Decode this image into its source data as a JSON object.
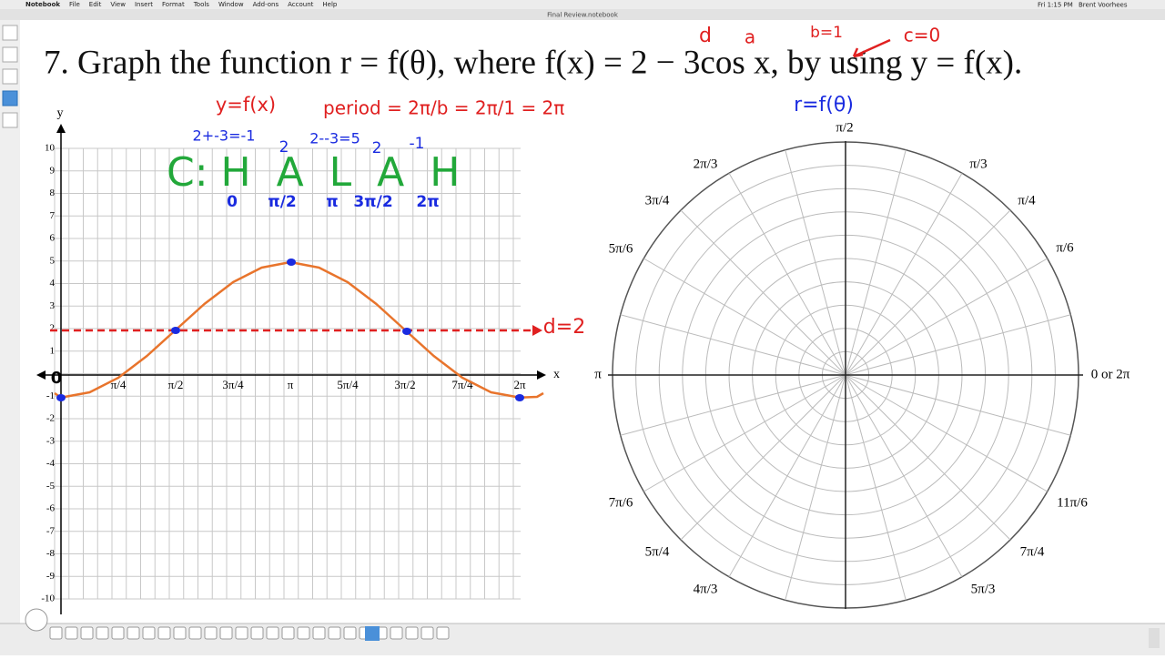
{
  "menubar": {
    "items": [
      "Notebook",
      "File",
      "Edit",
      "View",
      "Insert",
      "Format",
      "Tools",
      "Window",
      "Add-ons",
      "Account",
      "Help"
    ],
    "clock": "Fri 1:15 PM",
    "user": "Brent Voorhees"
  },
  "window": {
    "title": "Final Review.notebook"
  },
  "problem": {
    "text": "7. Graph the function r = f(θ), where f(x) = 2 − 3cos x, by using y = f(x)."
  },
  "left_graph": {
    "x_axis_label": "x",
    "y_axis_label": "y",
    "x_ticks": [
      "π/4",
      "π/2",
      "3π/4",
      "π",
      "5π/4",
      "3π/2",
      "7π/4",
      "2π"
    ],
    "y_ticks": [
      "10",
      "9",
      "8",
      "7",
      "6",
      "5",
      "4",
      "3",
      "2",
      "1",
      "-1",
      "-2",
      "-3",
      "-4",
      "-5",
      "-6",
      "-7",
      "-8",
      "-9",
      "-10"
    ]
  },
  "polar_graph": {
    "labels": [
      "π/2",
      "π/3",
      "π/4",
      "π/6",
      "0 or 2π",
      "2π/3",
      "3π/4",
      "5π/6",
      "π",
      "7π/6",
      "5π/4",
      "4π/3",
      "5π/3",
      "7π/4",
      "11π/6"
    ]
  },
  "annotations": {
    "d": "d",
    "a": "a",
    "b": "b=1",
    "c": "c=0",
    "yfx": "y=f(x)",
    "period": "period = 2π/b = 2π/1 = 2π",
    "min_calc": "2+-3=-1",
    "two_1": "2",
    "max_calc": "2--3=5",
    "two_2": "2",
    "neg_one": "-1",
    "halah": "C: H  A  L  A  H",
    "points": [
      "0",
      "π/2",
      "π",
      "3π/2",
      "2π"
    ],
    "d2": "d=2",
    "origin_zero": "0",
    "rfth": "r=f(θ)"
  }
}
